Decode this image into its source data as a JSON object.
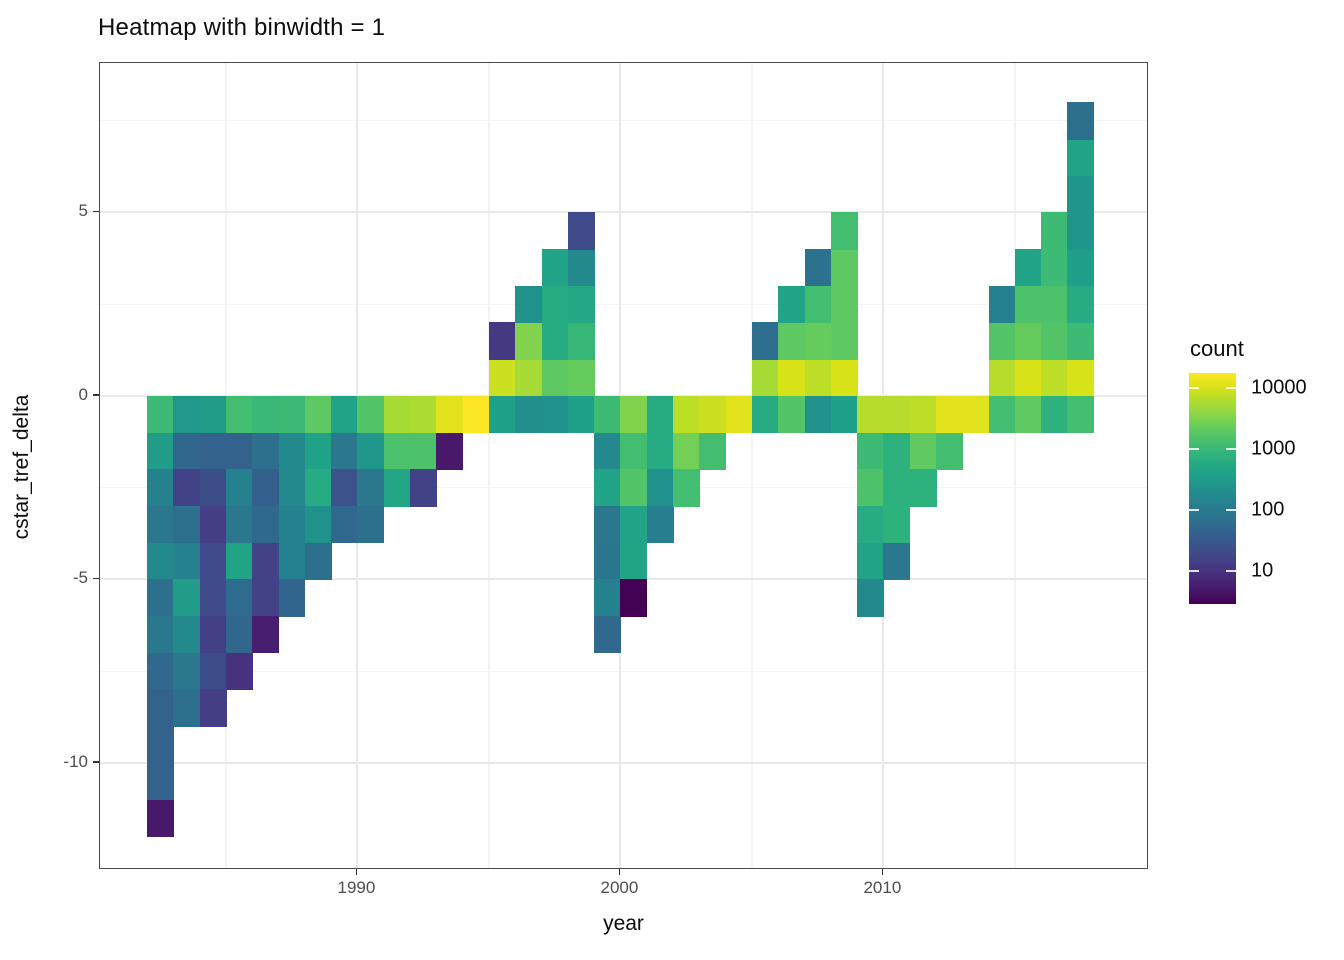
{
  "chart_data": {
    "type": "heatmap",
    "title": "Heatmap with binwidth = 1",
    "xlabel": "year",
    "ylabel": "cstar_tref_delta",
    "binwidth": 1,
    "x_domain": [
      1980.21,
      2020.1
    ],
    "y_domain": [
      -12.92,
      9.07
    ],
    "x_ticks": {
      "values": [
        1990,
        2000,
        2010
      ],
      "labels": [
        "1990",
        "2000",
        "2010"
      ],
      "minor": [
        1985,
        1995,
        2005,
        2015
      ]
    },
    "y_ticks": {
      "values": [
        5,
        0,
        -5,
        -10
      ],
      "labels": [
        "5",
        "0",
        "-5",
        "-10"
      ],
      "minor": [
        7.5,
        2.5,
        -2.5,
        -7.5
      ]
    },
    "grid": {
      "major_color": "#e9e9e9",
      "minor_color": "#f4f4f4",
      "shown": true
    },
    "panel_border_color": "#4a4a4a",
    "color_scale": {
      "palette": "viridis",
      "transform": "log10",
      "min": 2.9,
      "max": 17730,
      "legend_title": "count",
      "legend_ticks": {
        "values": [
          10000,
          1000,
          100,
          10
        ],
        "labels": [
          "10000",
          "1000",
          "100",
          "10"
        ]
      },
      "stops": [
        "#440154",
        "#48186a",
        "#472d7b",
        "#424086",
        "#3b528b",
        "#33638d",
        "#2c728e",
        "#26818e",
        "#21918c",
        "#1fa188",
        "#28ae80",
        "#3fbc73",
        "#5ec962",
        "#84d44b",
        "#addc30",
        "#d8e219",
        "#fde725"
      ]
    },
    "tiles_format": [
      "year",
      "delta_bin_lower",
      "count"
    ],
    "tiles": [
      [
        1982,
        -1,
        1100
      ],
      [
        1982,
        -2,
        330
      ],
      [
        1982,
        -3,
        130
      ],
      [
        1982,
        -4,
        92
      ],
      [
        1982,
        -5,
        170
      ],
      [
        1982,
        -6,
        70
      ],
      [
        1982,
        -7,
        95
      ],
      [
        1982,
        -8,
        53
      ],
      [
        1982,
        -9,
        45
      ],
      [
        1982,
        -10,
        45
      ],
      [
        1982,
        -11,
        45
      ],
      [
        1982,
        -12,
        5
      ],
      [
        1983,
        -1,
        300
      ],
      [
        1983,
        -2,
        50
      ],
      [
        1983,
        -3,
        16
      ],
      [
        1983,
        -4,
        70
      ],
      [
        1983,
        -5,
        130
      ],
      [
        1983,
        -6,
        330
      ],
      [
        1983,
        -7,
        170
      ],
      [
        1983,
        -8,
        92
      ],
      [
        1983,
        -9,
        70
      ],
      [
        1984,
        -1,
        330
      ],
      [
        1984,
        -2,
        45
      ],
      [
        1984,
        -3,
        23
      ],
      [
        1984,
        -4,
        14
      ],
      [
        1984,
        -5,
        20
      ],
      [
        1984,
        -6,
        20
      ],
      [
        1984,
        -7,
        15
      ],
      [
        1984,
        -8,
        23
      ],
      [
        1984,
        -9,
        14
      ],
      [
        1985,
        -1,
        1250
      ],
      [
        1985,
        -2,
        45
      ],
      [
        1985,
        -3,
        130
      ],
      [
        1985,
        -4,
        92
      ],
      [
        1985,
        -5,
        450
      ],
      [
        1985,
        -6,
        60
      ],
      [
        1985,
        -7,
        50
      ],
      [
        1985,
        -8,
        10
      ],
      [
        1986,
        -1,
        1000
      ],
      [
        1986,
        -2,
        70
      ],
      [
        1986,
        -3,
        40
      ],
      [
        1986,
        -4,
        53
      ],
      [
        1986,
        -5,
        16
      ],
      [
        1986,
        -6,
        16
      ],
      [
        1986,
        -7,
        6
      ],
      [
        1987,
        -1,
        1050
      ],
      [
        1987,
        -2,
        170
      ],
      [
        1987,
        -3,
        170
      ],
      [
        1987,
        -4,
        130
      ],
      [
        1987,
        -5,
        130
      ],
      [
        1987,
        -6,
        48
      ],
      [
        1988,
        -1,
        2000
      ],
      [
        1988,
        -2,
        400
      ],
      [
        1988,
        -3,
        590
      ],
      [
        1988,
        -4,
        225
      ],
      [
        1988,
        -5,
        70
      ],
      [
        1989,
        -1,
        420
      ],
      [
        1989,
        -2,
        90
      ],
      [
        1989,
        -3,
        26
      ],
      [
        1989,
        -4,
        55
      ],
      [
        1990,
        -1,
        1650
      ],
      [
        1990,
        -2,
        280
      ],
      [
        1990,
        -3,
        92
      ],
      [
        1990,
        -4,
        70
      ],
      [
        1991,
        -1,
        5400
      ],
      [
        1991,
        -2,
        1450
      ],
      [
        1991,
        -3,
        480
      ],
      [
        1992,
        -1,
        5900
      ],
      [
        1992,
        -2,
        1500
      ],
      [
        1992,
        -3,
        16
      ],
      [
        1993,
        -1,
        12000
      ],
      [
        1993,
        -2,
        5
      ],
      [
        1994,
        -1,
        17700
      ],
      [
        1995,
        -1,
        380
      ],
      [
        1995,
        0,
        8700
      ],
      [
        1995,
        1,
        12
      ],
      [
        1996,
        -1,
        210
      ],
      [
        1996,
        0,
        5400
      ],
      [
        1996,
        1,
        3300
      ],
      [
        1996,
        2,
        225
      ],
      [
        1997,
        -1,
        225
      ],
      [
        1997,
        0,
        2000
      ],
      [
        1997,
        1,
        590
      ],
      [
        1997,
        2,
        590
      ],
      [
        1997,
        3,
        430
      ],
      [
        1998,
        -1,
        380
      ],
      [
        1998,
        0,
        2250
      ],
      [
        1998,
        1,
        950
      ],
      [
        1998,
        2,
        500
      ],
      [
        1998,
        3,
        170
      ],
      [
        1998,
        4,
        20
      ],
      [
        1999,
        -1,
        1100
      ],
      [
        1999,
        -2,
        170
      ],
      [
        1999,
        -3,
        420
      ],
      [
        1999,
        -4,
        92
      ],
      [
        1999,
        -5,
        88
      ],
      [
        1999,
        -6,
        130
      ],
      [
        1999,
        -7,
        53
      ],
      [
        2000,
        -1,
        3300
      ],
      [
        2000,
        -2,
        1250
      ],
      [
        2000,
        -3,
        1650
      ],
      [
        2000,
        -4,
        430
      ],
      [
        2000,
        -5,
        450
      ],
      [
        2000,
        -6,
        3
      ],
      [
        2001,
        -1,
        590
      ],
      [
        2001,
        -2,
        590
      ],
      [
        2001,
        -3,
        225
      ],
      [
        2001,
        -4,
        120
      ],
      [
        2002,
        -1,
        7300
      ],
      [
        2002,
        -2,
        2700
      ],
      [
        2002,
        -3,
        1250
      ],
      [
        2003,
        -1,
        8700
      ],
      [
        2003,
        -2,
        1250
      ],
      [
        2004,
        -1,
        12000
      ],
      [
        2005,
        -1,
        600
      ],
      [
        2005,
        0,
        5400
      ],
      [
        2005,
        1,
        65
      ],
      [
        2006,
        -1,
        1650
      ],
      [
        2006,
        0,
        10300
      ],
      [
        2006,
        1,
        2000
      ],
      [
        2006,
        2,
        430
      ],
      [
        2007,
        -1,
        225
      ],
      [
        2007,
        0,
        7300
      ],
      [
        2007,
        1,
        2250
      ],
      [
        2007,
        2,
        1250
      ],
      [
        2007,
        3,
        75
      ],
      [
        2008,
        -1,
        380
      ],
      [
        2008,
        0,
        10300
      ],
      [
        2008,
        1,
        2000
      ],
      [
        2008,
        2,
        2000
      ],
      [
        2008,
        3,
        2000
      ],
      [
        2008,
        4,
        1250
      ],
      [
        2009,
        -1,
        6700
      ],
      [
        2009,
        -2,
        1100
      ],
      [
        2009,
        -3,
        1500
      ],
      [
        2009,
        -4,
        590
      ],
      [
        2009,
        -5,
        430
      ],
      [
        2009,
        -6,
        170
      ],
      [
        2010,
        -1,
        6700
      ],
      [
        2010,
        -2,
        760
      ],
      [
        2010,
        -3,
        760
      ],
      [
        2010,
        -4,
        760
      ],
      [
        2010,
        -5,
        92
      ],
      [
        2011,
        -1,
        7300
      ],
      [
        2011,
        -2,
        2050
      ],
      [
        2011,
        -3,
        760
      ],
      [
        2012,
        -1,
        12000
      ],
      [
        2012,
        -2,
        1250
      ],
      [
        2013,
        -1,
        12000
      ],
      [
        2014,
        -1,
        1250
      ],
      [
        2014,
        0,
        6700
      ],
      [
        2014,
        1,
        1650
      ],
      [
        2014,
        2,
        130
      ],
      [
        2015,
        -1,
        2050
      ],
      [
        2015,
        0,
        10300
      ],
      [
        2015,
        1,
        2250
      ],
      [
        2015,
        2,
        1500
      ],
      [
        2015,
        3,
        430
      ],
      [
        2016,
        -1,
        760
      ],
      [
        2016,
        0,
        7300
      ],
      [
        2016,
        1,
        1650
      ],
      [
        2016,
        2,
        1500
      ],
      [
        2016,
        3,
        1100
      ],
      [
        2016,
        4,
        1100
      ],
      [
        2017,
        -1,
        1250
      ],
      [
        2017,
        0,
        10300
      ],
      [
        2017,
        1,
        1100
      ],
      [
        2017,
        2,
        590
      ],
      [
        2017,
        3,
        350
      ],
      [
        2017,
        4,
        260
      ],
      [
        2017,
        5,
        260
      ],
      [
        2017,
        6,
        430
      ],
      [
        2017,
        7,
        70
      ]
    ]
  }
}
